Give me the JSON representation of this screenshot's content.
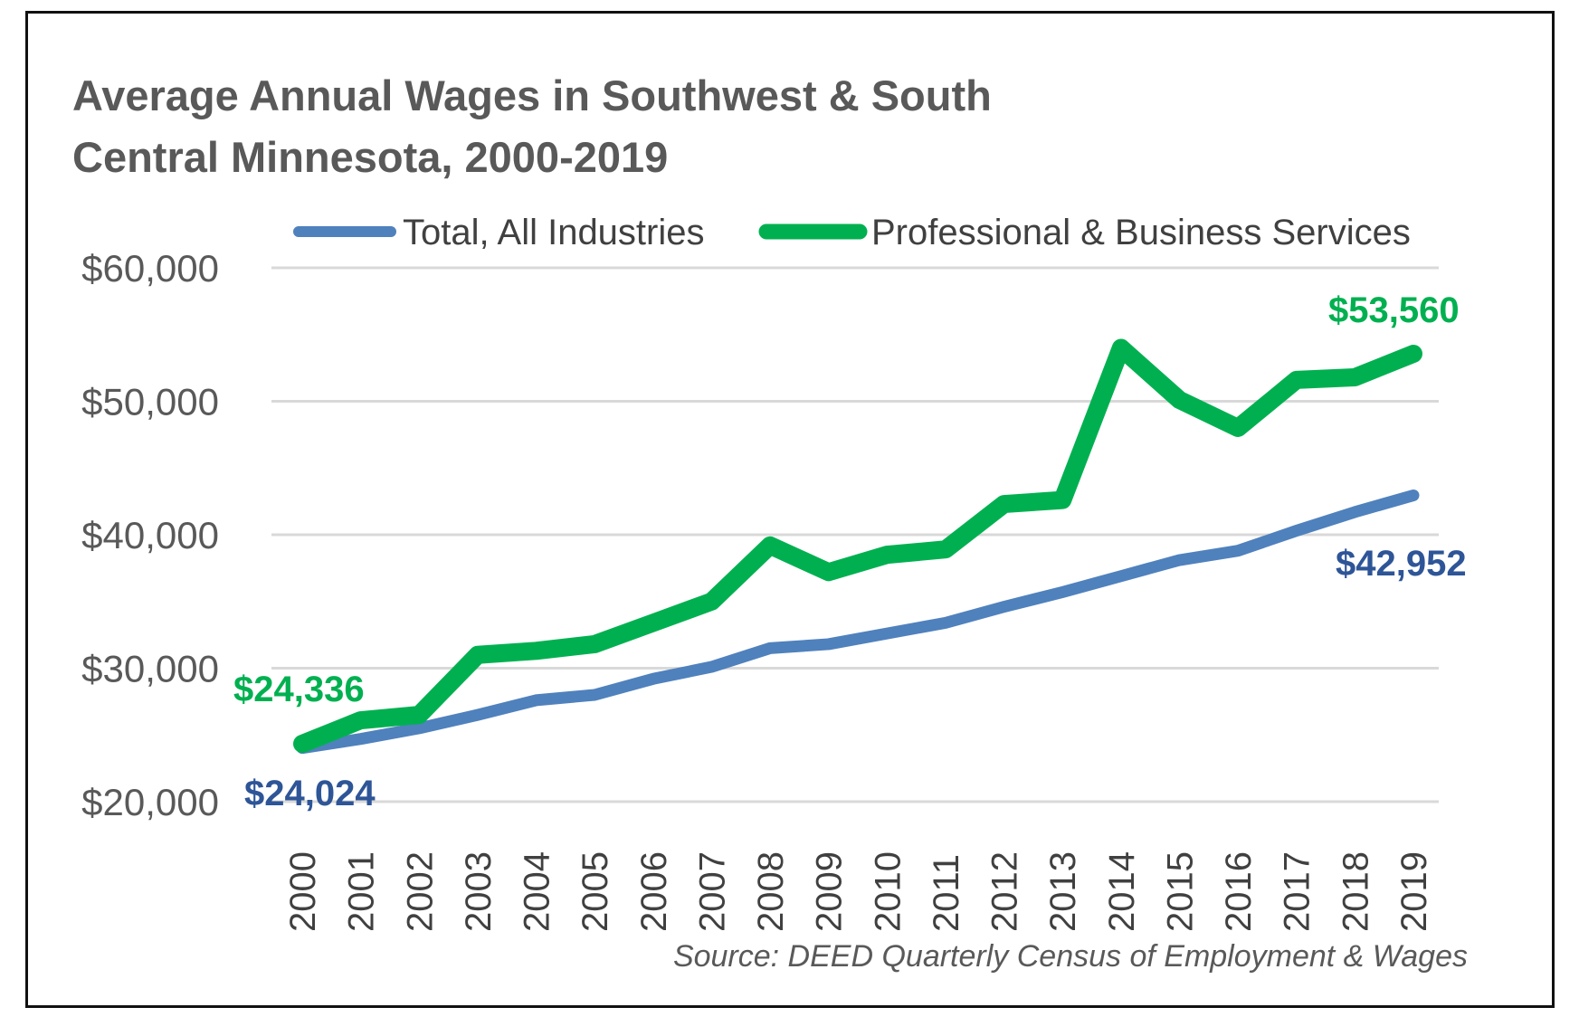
{
  "chart_data": {
    "type": "line",
    "title_line1": "Average Annual Wages in Southwest & South",
    "title_line2": "Central Minnesota, 2000-2019",
    "x": [
      "2000",
      "2001",
      "2002",
      "2003",
      "2004",
      "2005",
      "2006",
      "2007",
      "2008",
      "2009",
      "2010",
      "2011",
      "2012",
      "2013",
      "2014",
      "2015",
      "2016",
      "2017",
      "2018",
      "2019"
    ],
    "series": [
      {
        "name": "Total, All Industries",
        "color": "#4F81BD",
        "values": [
          24024,
          24700,
          25500,
          26500,
          27600,
          28000,
          29200,
          30100,
          31500,
          31800,
          32600,
          33400,
          34600,
          35700,
          36900,
          38100,
          38800,
          40300,
          41700,
          42952
        ]
      },
      {
        "name": "Professional & Business Services",
        "color": "#00B050",
        "values": [
          24336,
          26100,
          26500,
          31000,
          31300,
          31800,
          33400,
          35000,
          39200,
          37200,
          38500,
          38900,
          42300,
          42600,
          54000,
          50100,
          48000,
          51600,
          51800,
          53560
        ]
      }
    ],
    "yticks": [
      "$60,000",
      "$50,000",
      "$40,000",
      "$30,000",
      "$20,000"
    ],
    "ytick_values": [
      60000,
      50000,
      40000,
      30000,
      20000
    ],
    "ylim": [
      20000,
      60000
    ],
    "grid": true,
    "legend_position": "top",
    "data_labels": {
      "green_start": "$24,336",
      "blue_start": "$24,024",
      "green_end": "$53,560",
      "blue_end": "$42,952"
    },
    "label_colors": {
      "green": "#00B050",
      "blue": "#2E5597"
    },
    "source": "Source: DEED Quarterly Census of Employment & Wages"
  }
}
